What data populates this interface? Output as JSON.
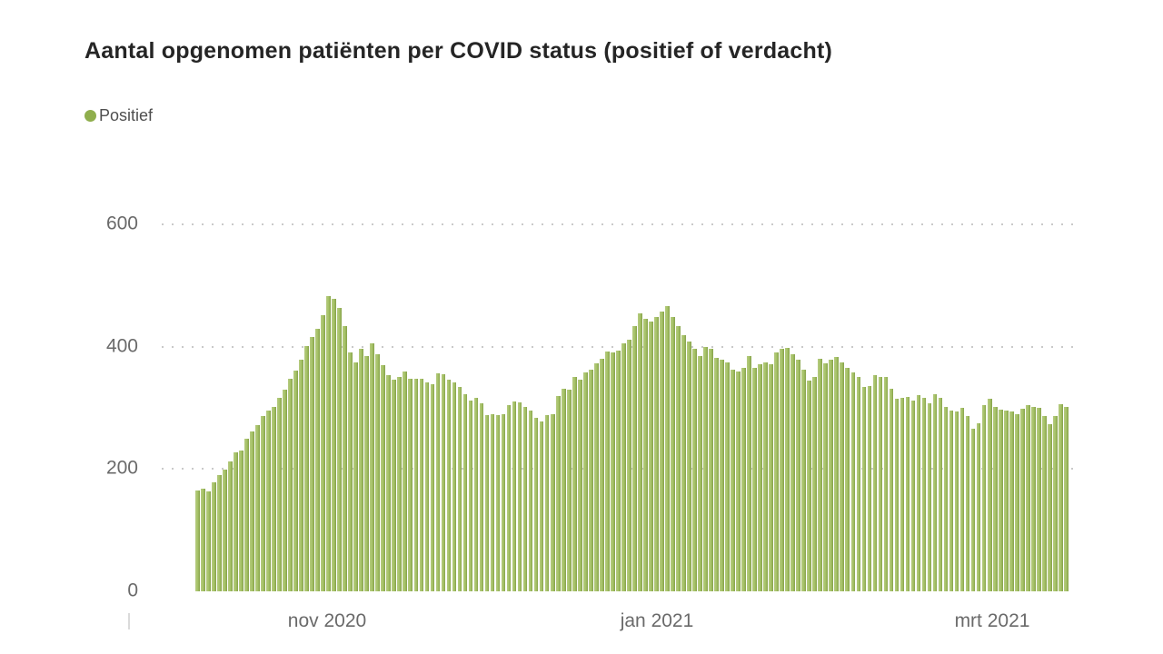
{
  "title": "Aantal opgenomen patiënten per COVID status (positief of verdacht)",
  "legend": {
    "items": [
      {
        "label": "Positief",
        "color": "#8fae4d"
      }
    ]
  },
  "colors": {
    "bar_light": "#b6cb81",
    "bar_mid": "#a5c166",
    "bar_dark_edge": "#85a14a",
    "title_text": "#252525",
    "axis_text": "#6a6a6a",
    "legend_text": "#4f4f4f",
    "grid_dot": "#c9c9c9",
    "background": "#ffffff"
  },
  "chart_data": {
    "type": "bar",
    "title": "Aantal opgenomen patiënten per COVID status (positief of verdacht)",
    "xlabel": "",
    "ylabel": "",
    "ylim": [
      0,
      600
    ],
    "y_ticks": [
      0,
      200,
      400,
      600
    ],
    "x_tick_labels": [
      "nov 2020",
      "jan 2021",
      "mrt 2021"
    ],
    "grid": "horizontal-dotted",
    "legend_position": "top-left",
    "series": [
      {
        "name": "Positief",
        "values": [
          165,
          168,
          164,
          178,
          190,
          199,
          212,
          227,
          230,
          249,
          262,
          272,
          286,
          296,
          302,
          316,
          330,
          347,
          361,
          379,
          401,
          416,
          429,
          452,
          482,
          478,
          463,
          433,
          390,
          374,
          397,
          385,
          406,
          387,
          370,
          353,
          346,
          351,
          360,
          348,
          348,
          347,
          341,
          339,
          356,
          355,
          346,
          341,
          334,
          322,
          312,
          317,
          307,
          288,
          290,
          288,
          290,
          305,
          310,
          309,
          302,
          295,
          283,
          278,
          288,
          289,
          319,
          331,
          329,
          351,
          346,
          358,
          363,
          373,
          380,
          392,
          390,
          394,
          406,
          411,
          434,
          455,
          445,
          441,
          448,
          458,
          467,
          448,
          433,
          419,
          409,
          397,
          385,
          399,
          397,
          381,
          378,
          375,
          363,
          360,
          366,
          385,
          366,
          371,
          375,
          371,
          390,
          397,
          398,
          388,
          378,
          363,
          345,
          351,
          380,
          373,
          378,
          383,
          375,
          366,
          358,
          351,
          334,
          336,
          353,
          351,
          351,
          331,
          315,
          317,
          318,
          312,
          321,
          316,
          307,
          322,
          316,
          301,
          296,
          294,
          300,
          286,
          266,
          275,
          304,
          315,
          301,
          297,
          295,
          294,
          290,
          298,
          305,
          301,
          300,
          287,
          274,
          286,
          306,
          301
        ]
      }
    ]
  }
}
